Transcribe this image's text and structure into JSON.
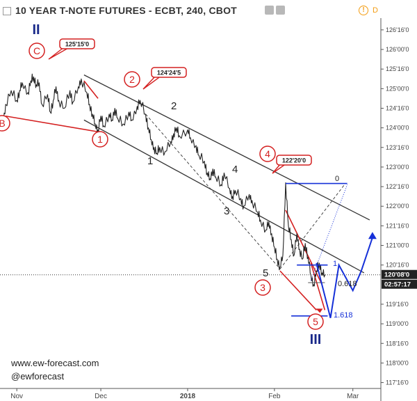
{
  "header": {
    "title": "10 YEAR T-NOTE FUTURES - ECBT, 240, CBOT",
    "right_label": "D",
    "alert_glyph": "!"
  },
  "watermark": {
    "site": "www.ew-forecast.com",
    "handle": "@ewforecast"
  },
  "colors": {
    "price": "#222222",
    "channel": "#333333",
    "red": "#d42020",
    "blue": "#1530d8",
    "navy": "#1a2a8a",
    "axis_text": "#444444",
    "price_badge": "#222222"
  },
  "chart_data": {
    "type": "line",
    "title": "10 YEAR T-NOTE FUTURES - ECBT, 240, CBOT",
    "xlabel": "",
    "ylabel": "",
    "y_unit": "32nds",
    "y_ticks": [
      {
        "label": "126'16'0",
        "value": 126.5
      },
      {
        "label": "126'00'0",
        "value": 126.0
      },
      {
        "label": "125'16'0",
        "value": 125.5
      },
      {
        "label": "125'00'0",
        "value": 125.0
      },
      {
        "label": "124'16'0",
        "value": 124.5
      },
      {
        "label": "124'00'0",
        "value": 124.0
      },
      {
        "label": "123'16'0",
        "value": 123.5
      },
      {
        "label": "123'00'0",
        "value": 123.0
      },
      {
        "label": "122'16'0",
        "value": 122.5
      },
      {
        "label": "122'00'0",
        "value": 122.0
      },
      {
        "label": "121'16'0",
        "value": 121.5
      },
      {
        "label": "121'00'0",
        "value": 121.0
      },
      {
        "label": "120'16'0",
        "value": 120.5
      },
      {
        "label": "119'16'0",
        "value": 119.5
      },
      {
        "label": "119'00'0",
        "value": 119.0
      },
      {
        "label": "118'16'0",
        "value": 118.5
      },
      {
        "label": "118'00'0",
        "value": 118.0
      },
      {
        "label": "117'16'0",
        "value": 117.5
      }
    ],
    "x_ticks": [
      {
        "label": "Nov",
        "date": "2017-11-01"
      },
      {
        "label": "Dec",
        "date": "2017-12-01"
      },
      {
        "label": "2018",
        "date": "2018-01-01"
      },
      {
        "label": "Feb",
        "date": "2018-02-01"
      },
      {
        "label": "Mar",
        "date": "2018-03-01"
      }
    ],
    "x_range": [
      "2017-10-26",
      "2018-03-11"
    ],
    "y_range": [
      117.35,
      126.8
    ],
    "last_price": {
      "label": "120'08'0",
      "value": 120.25
    },
    "countdown": "02:57:17",
    "series": [
      {
        "values": [
          {
            "date": "2017-10-26",
            "y": 124.25
          },
          {
            "date": "2017-10-27",
            "y": 124.05
          },
          {
            "date": "2017-10-28",
            "y": 124.6
          },
          {
            "date": "2017-10-30",
            "y": 124.95
          },
          {
            "date": "2017-11-01",
            "y": 124.7
          },
          {
            "date": "2017-11-02",
            "y": 124.95
          },
          {
            "date": "2017-11-03",
            "y": 125.15
          },
          {
            "date": "2017-11-05",
            "y": 124.9
          },
          {
            "date": "2017-11-06",
            "y": 125.2
          },
          {
            "date": "2017-11-07",
            "y": 125.3
          },
          {
            "date": "2017-11-08",
            "y": 125.1
          },
          {
            "date": "2017-11-09",
            "y": 125.15
          },
          {
            "date": "2017-11-10",
            "y": 124.6
          },
          {
            "date": "2017-11-12",
            "y": 124.85
          },
          {
            "date": "2017-11-13",
            "y": 124.4
          },
          {
            "date": "2017-11-14",
            "y": 124.7
          },
          {
            "date": "2017-11-15",
            "y": 125.05
          },
          {
            "date": "2017-11-16",
            "y": 124.7
          },
          {
            "date": "2017-11-18",
            "y": 124.5
          },
          {
            "date": "2017-11-20",
            "y": 124.95
          },
          {
            "date": "2017-11-21",
            "y": 124.65
          },
          {
            "date": "2017-11-23",
            "y": 125.05
          },
          {
            "date": "2017-11-24",
            "y": 125.25
          },
          {
            "date": "2017-11-26",
            "y": 124.9
          },
          {
            "date": "2017-11-27",
            "y": 124.6
          },
          {
            "date": "2017-11-28",
            "y": 124.35
          },
          {
            "date": "2017-11-29",
            "y": 124.1
          },
          {
            "date": "2017-11-30",
            "y": 123.95
          },
          {
            "date": "2017-12-01",
            "y": 124.3
          },
          {
            "date": "2017-12-02",
            "y": 124.05
          },
          {
            "date": "2017-12-04",
            "y": 124.35
          },
          {
            "date": "2017-12-05",
            "y": 124.2
          },
          {
            "date": "2017-12-06",
            "y": 124.5
          },
          {
            "date": "2017-12-07",
            "y": 124.25
          },
          {
            "date": "2017-12-09",
            "y": 124.1
          },
          {
            "date": "2017-12-11",
            "y": 124.4
          },
          {
            "date": "2017-12-12",
            "y": 124.2
          },
          {
            "date": "2017-12-14",
            "y": 124.55
          },
          {
            "date": "2017-12-15",
            "y": 124.7
          },
          {
            "date": "2017-12-17",
            "y": 124.35
          },
          {
            "date": "2017-12-18",
            "y": 124.0
          },
          {
            "date": "2017-12-19",
            "y": 123.7
          },
          {
            "date": "2017-12-20",
            "y": 123.5
          },
          {
            "date": "2017-12-21",
            "y": 123.35
          },
          {
            "date": "2017-12-22",
            "y": 123.5
          },
          {
            "date": "2017-12-24",
            "y": 123.4
          },
          {
            "date": "2017-12-26",
            "y": 123.65
          },
          {
            "date": "2017-12-27",
            "y": 123.85
          },
          {
            "date": "2017-12-28",
            "y": 124.0
          },
          {
            "date": "2017-12-29",
            "y": 123.8
          },
          {
            "date": "2018-01-01",
            "y": 123.95
          },
          {
            "date": "2018-01-02",
            "y": 123.75
          },
          {
            "date": "2018-01-04",
            "y": 123.55
          },
          {
            "date": "2018-01-05",
            "y": 123.3
          },
          {
            "date": "2018-01-07",
            "y": 123.15
          },
          {
            "date": "2018-01-08",
            "y": 122.85
          },
          {
            "date": "2018-01-09",
            "y": 122.7
          },
          {
            "date": "2018-01-10",
            "y": 122.95
          },
          {
            "date": "2018-01-11",
            "y": 122.75
          },
          {
            "date": "2018-01-13",
            "y": 122.55
          },
          {
            "date": "2018-01-14",
            "y": 122.85
          },
          {
            "date": "2018-01-16",
            "y": 122.45
          },
          {
            "date": "2018-01-17",
            "y": 122.25
          },
          {
            "date": "2018-01-18",
            "y": 122.4
          },
          {
            "date": "2018-01-20",
            "y": 122.2
          },
          {
            "date": "2018-01-21",
            "y": 122.0
          },
          {
            "date": "2018-01-23",
            "y": 122.3
          },
          {
            "date": "2018-01-24",
            "y": 122.15
          },
          {
            "date": "2018-01-26",
            "y": 121.85
          },
          {
            "date": "2018-01-27",
            "y": 121.65
          },
          {
            "date": "2018-01-29",
            "y": 121.4
          },
          {
            "date": "2018-01-30",
            "y": 121.6
          },
          {
            "date": "2018-01-31",
            "y": 121.3
          },
          {
            "date": "2018-02-01",
            "y": 120.95
          },
          {
            "date": "2018-02-02",
            "y": 120.65
          },
          {
            "date": "2018-02-03",
            "y": 120.45
          },
          {
            "date": "2018-02-04",
            "y": 120.75
          },
          {
            "date": "2018-02-05",
            "y": 122.6
          },
          {
            "date": "2018-02-06",
            "y": 121.5
          },
          {
            "date": "2018-02-07",
            "y": 121.15
          },
          {
            "date": "2018-02-08",
            "y": 120.75
          },
          {
            "date": "2018-02-09",
            "y": 121.3
          },
          {
            "date": "2018-02-10",
            "y": 120.9
          },
          {
            "date": "2018-02-11",
            "y": 120.65
          },
          {
            "date": "2018-02-12",
            "y": 121.05
          },
          {
            "date": "2018-02-13",
            "y": 120.7
          },
          {
            "date": "2018-02-14",
            "y": 120.25
          },
          {
            "date": "2018-02-15",
            "y": 120.0
          },
          {
            "date": "2018-02-16",
            "y": 120.35
          },
          {
            "date": "2018-02-17",
            "y": 120.55
          },
          {
            "date": "2018-02-18",
            "y": 120.3
          },
          {
            "date": "2018-02-19",
            "y": 120.25
          }
        ]
      }
    ],
    "annotations": [
      {
        "text": "125'15'0"
      },
      {
        "text": "124'24'5"
      },
      {
        "text": "122'20'0"
      },
      {
        "text": "1.618"
      },
      {
        "text": "0.618"
      },
      {
        "text": "1"
      },
      {
        "text": "0"
      }
    ]
  },
  "wave_labels": {
    "degree_major": [
      "II",
      "III"
    ],
    "circled": [
      "C",
      "B",
      "1",
      "2",
      "3",
      "4",
      "5"
    ],
    "minor": [
      "1",
      "2",
      "3",
      "4",
      "5"
    ]
  }
}
